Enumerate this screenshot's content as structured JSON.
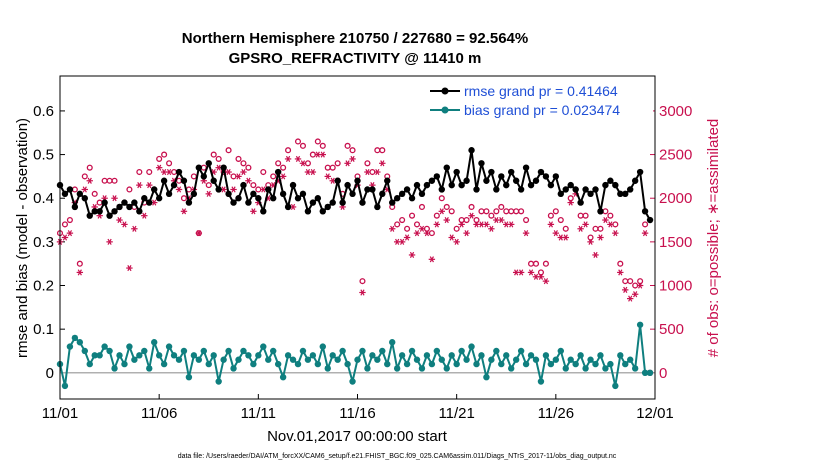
{
  "chart_data": {
    "type": "line",
    "title_line1": "Northern Hemisphere 210750 / 227680 = 92.564%",
    "title_line2": "GPSRO_REFRACTIVITY @ 11410 m",
    "xlabel": "Nov.01,2017 00:00:00 start",
    "ylabel_left": "rmse and bias (model - observation)",
    "ylabel_right": "# of obs: o=possible; ∗=assimilated",
    "footnote": "data file: /Users/raeder/DAI/ATM_forcXX/CAM6_setup/f.e21.FHIST_BGC.f09_025.CAM6assim.011/Diags_NTrS_2017-11/obs_diag_output.nc",
    "x_tick_labels": [
      "11/01",
      "11/06",
      "11/11",
      "11/16",
      "11/21",
      "11/26",
      "12/01"
    ],
    "x_tick_values": [
      0,
      5,
      10,
      15,
      20,
      25,
      30
    ],
    "xlim": [
      0,
      30
    ],
    "ylim_left": [
      -0.06,
      0.68
    ],
    "y_ticks_left": [
      "0",
      "0.1",
      "0.2",
      "0.3",
      "0.4",
      "0.5",
      "0.6"
    ],
    "y_tick_values_left": [
      0,
      0.1,
      0.2,
      0.3,
      0.4,
      0.5,
      0.6
    ],
    "ylim_right": [
      -300,
      3400
    ],
    "y_ticks_right": [
      "0",
      "500",
      "1000",
      "1500",
      "2000",
      "2500",
      "3000"
    ],
    "y_tick_values_right": [
      0,
      500,
      1000,
      1500,
      2000,
      2500,
      3000
    ],
    "legend": [
      {
        "label": "rmse grand pr = 0.41464",
        "color": "#000000"
      },
      {
        "label": "bias grand pr = 0.023474",
        "color": "#0f7f7f"
      }
    ],
    "colors": {
      "rmse": "#000000",
      "bias": "#0f7f7f",
      "counts": "#c8104e",
      "zero_line": "#b0b0b0"
    },
    "series": [
      {
        "name": "rmse",
        "x": [
          0.0,
          0.25,
          0.5,
          0.75,
          1.0,
          1.25,
          1.5,
          1.75,
          2.0,
          2.25,
          2.5,
          2.75,
          3.0,
          3.25,
          3.5,
          3.75,
          4.0,
          4.25,
          4.5,
          4.75,
          5.0,
          5.25,
          5.5,
          5.75,
          6.0,
          6.25,
          6.5,
          6.75,
          7.0,
          7.25,
          7.5,
          7.75,
          8.0,
          8.25,
          8.5,
          8.75,
          9.0,
          9.25,
          9.5,
          9.75,
          10.0,
          10.25,
          10.5,
          10.75,
          11.0,
          11.25,
          11.5,
          11.75,
          12.0,
          12.25,
          12.5,
          12.75,
          13.0,
          13.25,
          13.5,
          13.75,
          14.0,
          14.25,
          14.5,
          14.75,
          15.0,
          15.25,
          15.5,
          15.75,
          16.0,
          16.25,
          16.5,
          16.75,
          17.0,
          17.25,
          17.5,
          17.75,
          18.0,
          18.25,
          18.5,
          18.75,
          19.0,
          19.25,
          19.5,
          19.75,
          20.0,
          20.25,
          20.5,
          20.75,
          21.0,
          21.25,
          21.5,
          21.75,
          22.0,
          22.25,
          22.5,
          22.75,
          23.0,
          23.25,
          23.5,
          23.75,
          24.0,
          24.25,
          24.5,
          24.75,
          25.0,
          25.25,
          25.5,
          25.75,
          26.0,
          26.25,
          26.5,
          26.75,
          27.0,
          27.25,
          27.5,
          27.75,
          28.0,
          28.25,
          28.5,
          28.75,
          29.0,
          29.25,
          29.5,
          29.75
        ],
        "values": [
          0.43,
          0.41,
          0.42,
          0.38,
          0.41,
          0.4,
          0.36,
          0.37,
          0.37,
          0.39,
          0.36,
          0.37,
          0.38,
          0.39,
          0.38,
          0.39,
          0.37,
          0.4,
          0.39,
          0.42,
          0.4,
          0.44,
          0.41,
          0.43,
          0.46,
          0.44,
          0.39,
          0.41,
          0.47,
          0.45,
          0.48,
          0.44,
          0.42,
          0.47,
          0.41,
          0.39,
          0.4,
          0.43,
          0.39,
          0.41,
          0.4,
          0.37,
          0.42,
          0.4,
          0.46,
          0.41,
          0.38,
          0.43,
          0.4,
          0.41,
          0.37,
          0.39,
          0.4,
          0.37,
          0.38,
          0.39,
          0.44,
          0.39,
          0.43,
          0.41,
          0.44,
          0.39,
          0.42,
          0.42,
          0.38,
          0.41,
          0.44,
          0.39,
          0.4,
          0.41,
          0.42,
          0.4,
          0.43,
          0.41,
          0.43,
          0.44,
          0.45,
          0.42,
          0.47,
          0.43,
          0.46,
          0.43,
          0.44,
          0.51,
          0.42,
          0.48,
          0.44,
          0.46,
          0.42,
          0.45,
          0.43,
          0.46,
          0.44,
          0.42,
          0.47,
          0.43,
          0.44,
          0.46,
          0.45,
          0.43,
          0.45,
          0.41,
          0.42,
          0.43,
          0.42,
          0.39,
          0.42,
          0.41,
          0.42,
          0.37,
          0.43,
          0.44,
          0.43,
          0.41,
          0.41,
          0.42,
          0.44,
          0.46,
          0.37,
          0.35
        ]
      },
      {
        "name": "bias",
        "x": [
          0.0,
          0.25,
          0.5,
          0.75,
          1.0,
          1.25,
          1.5,
          1.75,
          2.0,
          2.25,
          2.5,
          2.75,
          3.0,
          3.25,
          3.5,
          3.75,
          4.0,
          4.25,
          4.5,
          4.75,
          5.0,
          5.25,
          5.5,
          5.75,
          6.0,
          6.25,
          6.5,
          6.75,
          7.0,
          7.25,
          7.5,
          7.75,
          8.0,
          8.25,
          8.5,
          8.75,
          9.0,
          9.25,
          9.5,
          9.75,
          10.0,
          10.25,
          10.5,
          10.75,
          11.0,
          11.25,
          11.5,
          11.75,
          12.0,
          12.25,
          12.5,
          12.75,
          13.0,
          13.25,
          13.5,
          13.75,
          14.0,
          14.25,
          14.5,
          14.75,
          15.0,
          15.25,
          15.5,
          15.75,
          16.0,
          16.25,
          16.5,
          16.75,
          17.0,
          17.25,
          17.5,
          17.75,
          18.0,
          18.25,
          18.5,
          18.75,
          19.0,
          19.25,
          19.5,
          19.75,
          20.0,
          20.25,
          20.5,
          20.75,
          21.0,
          21.25,
          21.5,
          21.75,
          22.0,
          22.25,
          22.5,
          22.75,
          23.0,
          23.25,
          23.5,
          23.75,
          24.0,
          24.25,
          24.5,
          24.75,
          25.0,
          25.25,
          25.5,
          25.75,
          26.0,
          26.25,
          26.5,
          26.75,
          27.0,
          27.25,
          27.5,
          27.75,
          28.0,
          28.25,
          28.5,
          28.75,
          29.0,
          29.25,
          29.5,
          29.75
        ],
        "values": [
          0.02,
          -0.03,
          0.06,
          0.08,
          0.07,
          0.05,
          0.02,
          0.04,
          0.04,
          0.06,
          0.05,
          0.01,
          0.04,
          0.02,
          0.06,
          0.03,
          0.04,
          0.05,
          0.01,
          0.07,
          0.04,
          0.02,
          0.06,
          0.04,
          0.03,
          0.05,
          -0.01,
          0.04,
          0.03,
          0.05,
          0.02,
          0.04,
          -0.02,
          0.03,
          0.05,
          0.01,
          0.03,
          0.05,
          0.04,
          0.02,
          0.04,
          0.06,
          0.03,
          0.05,
          0.02,
          -0.01,
          0.04,
          0.03,
          0.02,
          0.05,
          0.03,
          0.04,
          0.02,
          0.06,
          0.01,
          0.04,
          0.03,
          0.05,
          0.02,
          -0.02,
          0.03,
          0.05,
          0.01,
          0.04,
          0.03,
          0.05,
          0.02,
          0.07,
          0.01,
          0.04,
          0.02,
          0.05,
          0.03,
          0.01,
          0.04,
          0.02,
          0.05,
          0.03,
          0.01,
          0.04,
          0.02,
          0.05,
          0.03,
          0.06,
          0.02,
          0.04,
          -0.01,
          0.03,
          0.05,
          0.02,
          0.04,
          0.01,
          0.03,
          0.05,
          0.02,
          0.04,
          0.03,
          -0.02,
          0.04,
          0.02,
          0.03,
          0.05,
          0.01,
          0.03,
          0.02,
          0.04,
          0.01,
          0.03,
          0.02,
          0.04,
          0.01,
          0.02,
          -0.03,
          0.04,
          0.02,
          0.03,
          0.01,
          0.11,
          0.0,
          0.0
        ]
      },
      {
        "name": "possible",
        "x": [
          0.0,
          0.25,
          0.5,
          0.75,
          1.0,
          1.25,
          1.5,
          1.75,
          2.0,
          2.25,
          2.5,
          2.75,
          3.0,
          3.25,
          3.5,
          3.75,
          4.0,
          4.25,
          4.5,
          4.75,
          5.0,
          5.25,
          5.5,
          5.75,
          6.0,
          6.25,
          6.5,
          6.75,
          7.0,
          7.25,
          7.5,
          7.75,
          8.0,
          8.25,
          8.5,
          8.75,
          9.0,
          9.25,
          9.5,
          9.75,
          10.0,
          10.25,
          10.5,
          10.75,
          11.0,
          11.25,
          11.5,
          11.75,
          12.0,
          12.25,
          12.5,
          12.75,
          13.0,
          13.25,
          13.5,
          13.75,
          14.0,
          14.25,
          14.5,
          14.75,
          15.0,
          15.25,
          15.5,
          15.75,
          16.0,
          16.25,
          16.5,
          16.75,
          17.0,
          17.25,
          17.5,
          17.75,
          18.0,
          18.25,
          18.5,
          18.75,
          19.0,
          19.25,
          19.5,
          19.75,
          20.0,
          20.25,
          20.5,
          20.75,
          21.0,
          21.25,
          21.5,
          21.75,
          22.0,
          22.25,
          22.5,
          22.75,
          23.0,
          23.25,
          23.5,
          23.75,
          24.0,
          24.25,
          24.5,
          24.75,
          25.0,
          25.25,
          25.5,
          25.75,
          26.0,
          26.25,
          26.5,
          26.75,
          27.0,
          27.25,
          27.5,
          27.75,
          28.0,
          28.25,
          28.5,
          28.75,
          29.0,
          29.25,
          29.5,
          29.75
        ],
        "values": [
          1600,
          1700,
          1750,
          2100,
          1250,
          2250,
          2350,
          2050,
          1950,
          2200,
          2200,
          2200,
          1900,
          1950,
          2100,
          1900,
          2300,
          1950,
          2300,
          2100,
          2450,
          2500,
          2400,
          2300,
          2200,
          2000,
          2100,
          2250,
          1600,
          2350,
          2150,
          2500,
          2450,
          2300,
          2550,
          2250,
          2450,
          2400,
          2350,
          2150,
          2100,
          2300,
          2150,
          2250,
          2400,
          2350,
          2550,
          2150,
          2650,
          2600,
          2400,
          2500,
          2650,
          2600,
          2350,
          2350,
          2400,
          2050,
          2600,
          2550,
          2250,
          1050,
          2400,
          2300,
          2550,
          2550,
          2250,
          1900,
          1700,
          1750,
          1650,
          1800,
          1700,
          1900,
          1650,
          1600,
          1800,
          2000,
          1900,
          1850,
          1650,
          1750,
          1750,
          1900,
          1750,
          1850,
          1850,
          1800,
          1850,
          1900,
          1850,
          1850,
          1850,
          1850,
          1750,
          1250,
          1250,
          1150,
          1250,
          1800,
          1850,
          1750,
          1650,
          2000,
          2100,
          1800,
          1800,
          1550,
          1650,
          1650,
          1850,
          1800,
          1700,
          1250,
          1050,
          1050,
          1000,
          1050,
          1700,
          0
        ]
      },
      {
        "name": "assimilated",
        "x": [
          0.0,
          0.25,
          0.5,
          0.75,
          1.0,
          1.25,
          1.5,
          1.75,
          2.0,
          2.25,
          2.5,
          2.75,
          3.0,
          3.25,
          3.5,
          3.75,
          4.0,
          4.25,
          4.5,
          4.75,
          5.0,
          5.25,
          5.5,
          5.75,
          6.0,
          6.25,
          6.5,
          6.75,
          7.0,
          7.25,
          7.5,
          7.75,
          8.0,
          8.25,
          8.5,
          8.75,
          9.0,
          9.25,
          9.5,
          9.75,
          10.0,
          10.25,
          10.5,
          10.75,
          11.0,
          11.25,
          11.5,
          11.75,
          12.0,
          12.25,
          12.5,
          12.75,
          13.0,
          13.25,
          13.5,
          13.75,
          14.0,
          14.25,
          14.5,
          14.75,
          15.0,
          15.25,
          15.5,
          15.75,
          16.0,
          16.25,
          16.5,
          16.75,
          17.0,
          17.25,
          17.5,
          17.75,
          18.0,
          18.25,
          18.5,
          18.75,
          19.0,
          19.25,
          19.5,
          19.75,
          20.0,
          20.25,
          20.5,
          20.75,
          21.0,
          21.25,
          21.5,
          21.75,
          22.0,
          22.25,
          22.5,
          22.75,
          23.0,
          23.25,
          23.5,
          23.75,
          24.0,
          24.25,
          24.5,
          24.75,
          25.0,
          25.25,
          25.5,
          25.75,
          26.0,
          26.25,
          26.5,
          26.75,
          27.0,
          27.25,
          27.5,
          27.75,
          28.0,
          28.25,
          28.5,
          28.75,
          29.0,
          29.25,
          29.5,
          29.75
        ],
        "values": [
          1500,
          1550,
          1600,
          1950,
          1150,
          2100,
          2200,
          1900,
          1800,
          2000,
          1500,
          2000,
          1750,
          1700,
          1200,
          1650,
          2150,
          1800,
          2150,
          1950,
          2350,
          2300,
          2300,
          2200,
          2100,
          1850,
          2000,
          2100,
          1600,
          2200,
          2050,
          2300,
          2350,
          2100,
          2300,
          2100,
          2250,
          2300,
          2200,
          1850,
          1950,
          2100,
          2000,
          2150,
          2200,
          2250,
          2450,
          1900,
          2450,
          2400,
          2300,
          2300,
          2500,
          2500,
          2250,
          2200,
          2200,
          1900,
          2400,
          2450,
          2150,
          920,
          2300,
          2150,
          2300,
          2400,
          2100,
          1650,
          1500,
          1500,
          1550,
          1350,
          1600,
          1650,
          1600,
          1300,
          1700,
          1850,
          1750,
          1550,
          1500,
          1700,
          1600,
          1800,
          1700,
          1700,
          1700,
          1650,
          1750,
          1750,
          1700,
          1700,
          1150,
          1150,
          1600,
          1150,
          1100,
          1100,
          1050,
          1700,
          1600,
          1550,
          1550,
          1950,
          2050,
          1650,
          1700,
          1500,
          1350,
          1550,
          1750,
          1700,
          1600,
          1150,
          950,
          850,
          900,
          1000,
          1600,
          0
        ]
      }
    ]
  }
}
